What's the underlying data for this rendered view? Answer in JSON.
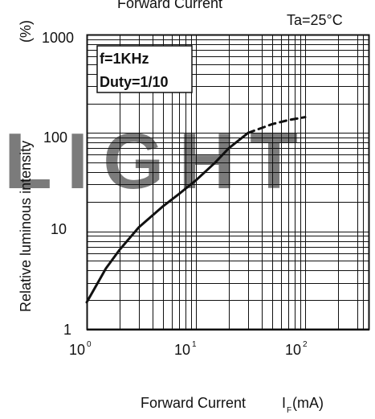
{
  "chart_data": {
    "type": "line",
    "title": "Forward Current",
    "condition": "Ta=25°C",
    "ylabel": "Relative luminous intensity",
    "ylabel_unit": "(%)",
    "xlabel": "Forward Current",
    "xlabel_symbol": "I",
    "xlabel_subscript": "F",
    "xlabel_unit": "(mA)",
    "x_scale": "log",
    "y_scale": "log",
    "xlim": [
      1,
      340
    ],
    "ylim": [
      1,
      1000
    ],
    "x_tick_labels": [
      {
        "value": 1,
        "base": "10",
        "exp": "0"
      },
      {
        "value": 10,
        "base": "10",
        "exp": "1"
      },
      {
        "value": 100,
        "base": "10",
        "exp": "2"
      }
    ],
    "y_tick_labels": [
      {
        "value": 1,
        "label": "1"
      },
      {
        "value": 10,
        "label": "10"
      },
      {
        "value": 100,
        "label": "100"
      },
      {
        "value": 1000,
        "label": "1000"
      }
    ],
    "annotation_lines": [
      "f=1KHz",
      "Duty=1/10"
    ],
    "grid": true,
    "watermark": "LIGHT",
    "series": [
      {
        "style": "solid",
        "x": [
          1,
          1.5,
          2,
          3,
          5,
          7,
          10,
          15,
          20,
          30
        ],
        "y": [
          1.9,
          4.2,
          6.5,
          11,
          18,
          24,
          33,
          50,
          70,
          100
        ]
      },
      {
        "style": "dashed",
        "x": [
          30,
          50,
          70,
          100
        ],
        "y": [
          100,
          123,
          135,
          145
        ]
      }
    ]
  }
}
